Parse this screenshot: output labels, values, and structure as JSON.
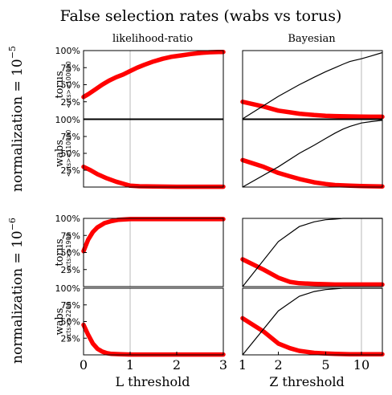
{
  "figure": {
    "title": "False selection rates (wabs vs torus)",
    "column_titles": [
      "likelihood-ratio",
      "Bayesian"
    ],
    "group_labels": [
      "normalization = 10",
      "normalization = 10"
    ],
    "group_exponents": [
      "−5",
      "−6"
    ],
    "xlabels": [
      "L threshold",
      "Z threshold"
    ]
  },
  "chart_data": [
    {
      "type": "line",
      "row_label": "torus",
      "row_sublabel": "<cts>=100000",
      "column": "likelihood-ratio",
      "xlim": [
        0,
        3
      ],
      "ylim": [
        0,
        1
      ],
      "x_ticks": [],
      "y_ticks": [
        "100%",
        "75%",
        "50%",
        "25%"
      ],
      "series": [
        {
          "color": "#ff0000",
          "x": [
            0,
            0.1,
            0.25,
            0.4,
            0.55,
            0.7,
            0.85,
            1.0,
            1.15,
            1.3,
            1.5,
            1.7,
            1.9,
            2.1,
            2.3,
            2.5,
            2.7,
            2.9,
            3.0
          ],
          "y": [
            0.32,
            0.36,
            0.43,
            0.5,
            0.56,
            0.61,
            0.65,
            0.7,
            0.75,
            0.79,
            0.84,
            0.88,
            0.91,
            0.93,
            0.95,
            0.965,
            0.975,
            0.98,
            0.98
          ]
        }
      ]
    },
    {
      "type": "line",
      "row_label": "torus",
      "row_sublabel": "<cts>=100000",
      "column": "Bayesian",
      "xlim": [
        1,
        15
      ],
      "ylim": [
        0,
        1
      ],
      "x_ticks": [],
      "y_ticks": [],
      "series": [
        {
          "color": "#ff0000",
          "x": [
            1,
            1.5,
            2,
            2.5,
            3,
            4,
            5,
            6,
            8,
            10,
            12,
            15
          ],
          "y": [
            0.25,
            0.18,
            0.12,
            0.095,
            0.075,
            0.055,
            0.045,
            0.04,
            0.035,
            0.032,
            0.03,
            0.03
          ]
        },
        {
          "color": "#000000",
          "x": [
            1,
            2,
            3,
            4,
            5,
            6,
            7,
            8,
            10,
            12,
            15
          ],
          "y": [
            0.0,
            0.33,
            0.5,
            0.61,
            0.69,
            0.75,
            0.8,
            0.84,
            0.88,
            0.92,
            0.97
          ]
        }
      ]
    },
    {
      "type": "line",
      "row_label": "wabs",
      "row_sublabel": "<cts>=110000",
      "column": "likelihood-ratio",
      "xlim": [
        0,
        3
      ],
      "ylim": [
        0,
        1
      ],
      "x_ticks": [],
      "y_ticks": [
        "100%",
        "75%",
        "50%",
        "25%"
      ],
      "series": [
        {
          "color": "#ff0000",
          "x": [
            0,
            0.15,
            0.3,
            0.5,
            0.7,
            0.9,
            1.0,
            1.2,
            1.5,
            2.0,
            2.5,
            3.0
          ],
          "y": [
            0.3,
            0.25,
            0.19,
            0.13,
            0.08,
            0.04,
            0.02,
            0.012,
            0.008,
            0.005,
            0.005,
            0.005
          ]
        }
      ]
    },
    {
      "type": "line",
      "row_label": "wabs",
      "row_sublabel": "<cts>=110000",
      "column": "Bayesian",
      "xlim": [
        1,
        15
      ],
      "ylim": [
        0,
        1
      ],
      "x_ticks": [],
      "y_ticks": [],
      "series": [
        {
          "color": "#ff0000",
          "x": [
            1,
            1.5,
            2,
            2.5,
            3,
            4,
            5,
            6,
            8,
            10,
            12,
            15
          ],
          "y": [
            0.4,
            0.3,
            0.21,
            0.16,
            0.12,
            0.07,
            0.045,
            0.03,
            0.02,
            0.015,
            0.012,
            0.01
          ]
        },
        {
          "color": "#000000",
          "x": [
            1,
            2,
            3,
            4,
            5,
            6,
            7,
            8,
            10,
            12,
            15
          ],
          "y": [
            0.0,
            0.3,
            0.5,
            0.62,
            0.72,
            0.8,
            0.86,
            0.9,
            0.95,
            0.97,
            0.99
          ]
        }
      ]
    },
    {
      "type": "line",
      "row_label": "torus",
      "row_sublabel": "<cts>=1900",
      "column": "likelihood-ratio",
      "xlim": [
        0,
        3
      ],
      "ylim": [
        0,
        1
      ],
      "x_ticks": [],
      "y_ticks": [
        "100%",
        "75%",
        "50%",
        "25%"
      ],
      "series": [
        {
          "color": "#ff0000",
          "x": [
            0,
            0.1,
            0.2,
            0.3,
            0.45,
            0.6,
            0.75,
            1.0,
            1.5,
            2.0,
            2.5,
            3.0
          ],
          "y": [
            0.52,
            0.69,
            0.8,
            0.87,
            0.93,
            0.96,
            0.98,
            0.99,
            0.99,
            0.99,
            0.99,
            0.99
          ]
        }
      ]
    },
    {
      "type": "line",
      "row_label": "torus",
      "row_sublabel": "<cts>=1900",
      "column": "Bayesian",
      "xlim": [
        1,
        15
      ],
      "ylim": [
        0,
        1
      ],
      "x_ticks": [],
      "y_ticks": [],
      "series": [
        {
          "color": "#ff0000",
          "x": [
            1,
            1.5,
            2,
            2.5,
            3,
            4,
            5,
            6,
            8,
            10,
            12,
            15
          ],
          "y": [
            0.4,
            0.25,
            0.13,
            0.07,
            0.05,
            0.04,
            0.035,
            0.03,
            0.03,
            0.03,
            0.03,
            0.03
          ]
        },
        {
          "color": "#000000",
          "x": [
            1,
            2,
            3,
            4,
            5,
            6,
            7,
            8,
            10,
            12,
            15
          ],
          "y": [
            0.0,
            0.66,
            0.88,
            0.95,
            0.98,
            0.99,
            1.0,
            1.0,
            1.0,
            1.0,
            1.0
          ]
        }
      ]
    },
    {
      "type": "line",
      "row_label": "wabs",
      "row_sublabel": "<cts>=2200",
      "column": "likelihood-ratio",
      "xlim": [
        0,
        3
      ],
      "ylim": [
        0,
        1
      ],
      "x_ticks": [
        "0",
        "1",
        "2",
        "3"
      ],
      "y_ticks": [
        "100%",
        "75%",
        "50%",
        "25%"
      ],
      "series": [
        {
          "color": "#ff0000",
          "x": [
            0,
            0.1,
            0.2,
            0.3,
            0.4,
            0.5,
            0.6,
            0.8,
            1.0,
            1.5,
            2.0,
            2.5,
            3.0
          ],
          "y": [
            0.45,
            0.3,
            0.17,
            0.09,
            0.05,
            0.025,
            0.015,
            0.008,
            0.005,
            0.005,
            0.005,
            0.005,
            0.005
          ]
        }
      ]
    },
    {
      "type": "line",
      "row_label": "wabs",
      "row_sublabel": "<cts>=2200",
      "column": "Bayesian",
      "xlim": [
        1,
        15
      ],
      "ylim": [
        0,
        1
      ],
      "x_ticks": [
        "1",
        "2",
        "5",
        "10"
      ],
      "y_ticks": [],
      "series": [
        {
          "color": "#ff0000",
          "x": [
            1,
            1.5,
            2,
            2.5,
            3,
            4,
            5,
            6,
            8,
            10,
            12,
            15
          ],
          "y": [
            0.55,
            0.35,
            0.17,
            0.1,
            0.06,
            0.03,
            0.02,
            0.015,
            0.01,
            0.01,
            0.01,
            0.01
          ]
        },
        {
          "color": "#000000",
          "x": [
            1,
            2,
            3,
            4,
            5,
            6,
            7,
            8,
            10,
            12,
            15
          ],
          "y": [
            0.0,
            0.66,
            0.88,
            0.95,
            0.98,
            0.99,
            1.0,
            1.0,
            1.0,
            1.0,
            1.0
          ]
        }
      ]
    }
  ]
}
